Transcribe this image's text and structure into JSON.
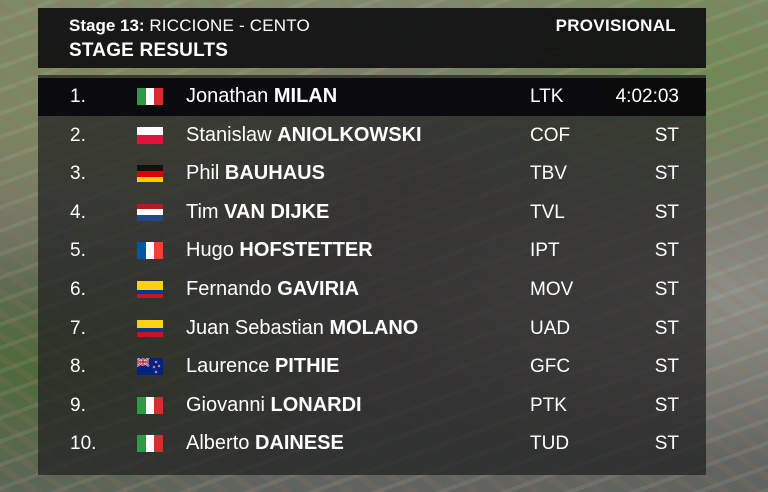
{
  "header": {
    "stage_label": "Stage 13:",
    "stage_route": "RICCIONE - CENTO",
    "status": "PROVISIONAL",
    "title": "STAGE RESULTS"
  },
  "results": [
    {
      "pos": "1.",
      "first": "Jonathan",
      "last": "MILAN",
      "team": "LTK",
      "time": "4:02:03",
      "flag": "italy-flag-icon",
      "colors": [
        "#2e9a47",
        "#ffffff",
        "#d32f2f"
      ],
      "orient": "v"
    },
    {
      "pos": "2.",
      "first": "Stanislaw",
      "last": "ANIOLKOWSKI",
      "team": "COF",
      "time": "ST",
      "flag": "poland-flag-icon",
      "colors": [
        "#ffffff",
        "#dc143c"
      ],
      "orient": "h"
    },
    {
      "pos": "3.",
      "first": "Phil",
      "last": "BAUHAUS",
      "team": "TBV",
      "time": "ST",
      "flag": "germany-flag-icon",
      "colors": [
        "#111111",
        "#dd0000",
        "#ffce00"
      ],
      "orient": "h"
    },
    {
      "pos": "4.",
      "first": "Tim",
      "last": "VAN DIJKE",
      "team": "TVL",
      "time": "ST",
      "flag": "netherlands-flag-icon",
      "colors": [
        "#ae1c28",
        "#ffffff",
        "#21468b"
      ],
      "orient": "h"
    },
    {
      "pos": "5.",
      "first": "Hugo",
      "last": "HOFSTETTER",
      "team": "IPT",
      "time": "ST",
      "flag": "france-flag-icon",
      "colors": [
        "#0055a4",
        "#ffffff",
        "#ef4135"
      ],
      "orient": "v"
    },
    {
      "pos": "6.",
      "first": "Fernando",
      "last": "GAVIRIA",
      "team": "MOV",
      "time": "ST",
      "flag": "colombia-flag-icon",
      "colors": [
        "#fcd116",
        "#fcd116",
        "#003893",
        "#ce1126"
      ],
      "orient": "h"
    },
    {
      "pos": "7.",
      "first": "Juan Sebastian",
      "last": "MOLANO",
      "team": "UAD",
      "time": "ST",
      "flag": "colombia-flag-icon",
      "colors": [
        "#fcd116",
        "#fcd116",
        "#003893",
        "#ce1126"
      ],
      "orient": "h"
    },
    {
      "pos": "8.",
      "first": "Laurence",
      "last": "PITHIE",
      "team": "GFC",
      "time": "ST",
      "flag": "new-zealand-flag-icon",
      "colors": [
        "#00247d"
      ],
      "orient": "h"
    },
    {
      "pos": "9.",
      "first": "Giovanni",
      "last": "LONARDI",
      "team": "PTK",
      "time": "ST",
      "flag": "italy-flag-icon",
      "colors": [
        "#2e9a47",
        "#ffffff",
        "#d32f2f"
      ],
      "orient": "v"
    },
    {
      "pos": "10.",
      "first": "Alberto",
      "last": "DAINESE",
      "team": "TUD",
      "time": "ST",
      "flag": "italy-flag-icon",
      "colors": [
        "#2e9a47",
        "#ffffff",
        "#d32f2f"
      ],
      "orient": "v"
    }
  ]
}
